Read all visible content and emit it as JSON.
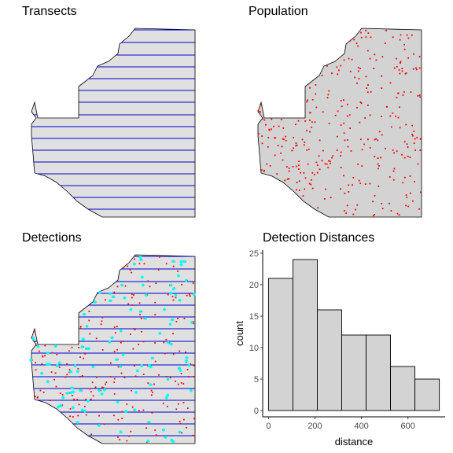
{
  "chart_data": [
    {
      "type": "map",
      "title": "Transects",
      "layers": [
        "region",
        "transect-lines"
      ],
      "transect_count": 16
    },
    {
      "type": "map",
      "title": "Population",
      "layers": [
        "region",
        "population-points"
      ],
      "point_color": "#ff0000"
    },
    {
      "type": "map",
      "title": "Detections",
      "layers": [
        "region",
        "transect-lines",
        "population-points",
        "detected-points"
      ],
      "point_color": "#ff0000",
      "detection_color": "#00ffff"
    },
    {
      "type": "bar",
      "title": "Detection Distances",
      "xlabel": "distance",
      "ylabel": "count",
      "bins": [
        [
          0,
          105
        ],
        [
          105,
          210
        ],
        [
          210,
          315
        ],
        [
          315,
          420
        ],
        [
          420,
          525
        ],
        [
          525,
          630
        ],
        [
          630,
          735
        ]
      ],
      "values": [
        21,
        24,
        16,
        12,
        12,
        7,
        5
      ],
      "xlim": [
        -25,
        760
      ],
      "ylim": [
        -1,
        25.5
      ],
      "xticks": [
        0,
        200,
        400,
        600
      ],
      "yticks": [
        0,
        5,
        10,
        15,
        20,
        25
      ],
      "bar_fill": "#d3d3d3"
    }
  ],
  "colors": {
    "region_fill": "#e0e0e0",
    "region_fill_pop": "#d3d3d3",
    "transect": "#0000cc",
    "point": "#ff0000",
    "detection": "#00ffff"
  }
}
